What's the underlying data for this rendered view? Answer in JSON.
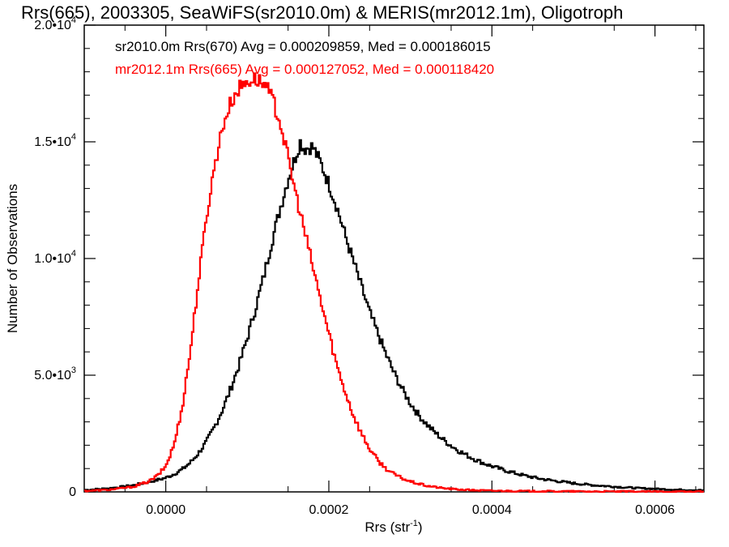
{
  "chart_data": {
    "type": "histogram",
    "title": "Rrs(665), 2003305, SeaWiFS(sr2010.0m) & MERIS(mr2012.1m), Oligotroph",
    "xlabel": {
      "main": "Rrs (str",
      "sup": "-1",
      "end": ")"
    },
    "ylabel": "Number of Observations",
    "xlim": [
      -0.0001,
      0.00066
    ],
    "ylim": [
      0,
      20000
    ],
    "grid": false,
    "legend_position": "top-left",
    "x_ticks": [
      {
        "value": 0.0,
        "label": "0.0000"
      },
      {
        "value": 0.0002,
        "label": "0.0002"
      },
      {
        "value": 0.0004,
        "label": "0.0004"
      },
      {
        "value": 0.0006,
        "label": "0.0006"
      }
    ],
    "y_ticks": [
      {
        "value": 0,
        "mant": "0",
        "exp": ""
      },
      {
        "value": 5000,
        "mant": "5.0•10",
        "exp": "3"
      },
      {
        "value": 10000,
        "mant": "1.0•10",
        "exp": "4"
      },
      {
        "value": 15000,
        "mant": "1.5•10",
        "exp": "4"
      },
      {
        "value": 20000,
        "mant": "2.0•10",
        "exp": "4"
      }
    ],
    "series": [
      {
        "name": "sr2010.0m Rrs(670)",
        "legend_text": "sr2010.0m Rrs(670) Avg = 0.000209859, Med = 0.000186015",
        "color": "#000000",
        "avg": 0.000209859,
        "median": 0.000186015,
        "points": [
          [
            -0.0001,
            80
          ],
          [
            -7e-05,
            150
          ],
          [
            -4e-05,
            280
          ],
          [
            -2e-05,
            430
          ],
          [
            0.0,
            600
          ],
          [
            1e-05,
            760
          ],
          [
            2e-05,
            960
          ],
          [
            3e-05,
            1250
          ],
          [
            4e-05,
            1650
          ],
          [
            5e-05,
            2150
          ],
          [
            6e-05,
            2800
          ],
          [
            7e-05,
            3550
          ],
          [
            8e-05,
            4450
          ],
          [
            9e-05,
            5450
          ],
          [
            0.0001,
            6600
          ],
          [
            0.00011,
            7850
          ],
          [
            0.00012,
            9200
          ],
          [
            0.00013,
            10700
          ],
          [
            0.00014,
            12100
          ],
          [
            0.00015,
            13400
          ],
          [
            0.00016,
            14450
          ],
          [
            0.000165,
            15000
          ],
          [
            0.00017,
            14700
          ],
          [
            0.00018,
            14800
          ],
          [
            0.00019,
            14100
          ],
          [
            0.0002,
            13200
          ],
          [
            0.00021,
            12200
          ],
          [
            0.00022,
            11000
          ],
          [
            0.00023,
            9900
          ],
          [
            0.00024,
            8800
          ],
          [
            0.00025,
            7700
          ],
          [
            0.00026,
            6800
          ],
          [
            0.00027,
            5900
          ],
          [
            0.00028,
            5100
          ],
          [
            0.00029,
            4400
          ],
          [
            0.0003,
            3800
          ],
          [
            0.00031,
            3300
          ],
          [
            0.00032,
            2900
          ],
          [
            0.00033,
            2550
          ],
          [
            0.00034,
            2250
          ],
          [
            0.00035,
            1980
          ],
          [
            0.00036,
            1750
          ],
          [
            0.00037,
            1550
          ],
          [
            0.00038,
            1380
          ],
          [
            0.00039,
            1230
          ],
          [
            0.0004,
            1100
          ],
          [
            0.00042,
            880
          ],
          [
            0.00044,
            700
          ],
          [
            0.00046,
            560
          ],
          [
            0.00048,
            460
          ],
          [
            0.0005,
            370
          ],
          [
            0.00052,
            300
          ],
          [
            0.00054,
            250
          ],
          [
            0.00056,
            200
          ],
          [
            0.00058,
            160
          ],
          [
            0.0006,
            130
          ],
          [
            0.00062,
            100
          ],
          [
            0.00064,
            85
          ],
          [
            0.00066,
            70
          ]
        ]
      },
      {
        "name": "mr2012.1m Rrs(665)",
        "legend_text": "mr2012.1m Rrs(665) Avg = 0.000127052, Med = 0.000118420",
        "color": "#ff0000",
        "avg": 0.000127052,
        "median": 0.00011842,
        "points": [
          [
            -0.0001,
            40
          ],
          [
            -7e-05,
            90
          ],
          [
            -4e-05,
            220
          ],
          [
            -2e-05,
            460
          ],
          [
            -1e-05,
            700
          ],
          [
            0.0,
            1100
          ],
          [
            1e-05,
            2000
          ],
          [
            2e-05,
            3600
          ],
          [
            3e-05,
            6000
          ],
          [
            4e-05,
            9000
          ],
          [
            5e-05,
            11800
          ],
          [
            6e-05,
            14000
          ],
          [
            7e-05,
            15700
          ],
          [
            8e-05,
            16700
          ],
          [
            9e-05,
            17300
          ],
          [
            0.0001,
            17600
          ],
          [
            0.00011,
            17700
          ],
          [
            0.00012,
            17500
          ],
          [
            0.00013,
            16900
          ],
          [
            0.00014,
            15900
          ],
          [
            0.00015,
            14300
          ],
          [
            0.00016,
            12700
          ],
          [
            0.00017,
            11200
          ],
          [
            0.00018,
            9700
          ],
          [
            0.00019,
            8200
          ],
          [
            0.0002,
            6800
          ],
          [
            0.00021,
            5400
          ],
          [
            0.00022,
            4300
          ],
          [
            0.00023,
            3300
          ],
          [
            0.00024,
            2500
          ],
          [
            0.00025,
            1850
          ],
          [
            0.00026,
            1350
          ],
          [
            0.00027,
            1000
          ],
          [
            0.00028,
            760
          ],
          [
            0.00029,
            580
          ],
          [
            0.0003,
            440
          ],
          [
            0.00032,
            260
          ],
          [
            0.00034,
            160
          ],
          [
            0.00036,
            100
          ],
          [
            0.00038,
            70
          ],
          [
            0.0004,
            50
          ],
          [
            0.00045,
            30
          ],
          [
            0.0005,
            20
          ],
          [
            0.00055,
            15
          ],
          [
            0.0006,
            12
          ],
          [
            0.00066,
            10
          ]
        ]
      }
    ]
  }
}
